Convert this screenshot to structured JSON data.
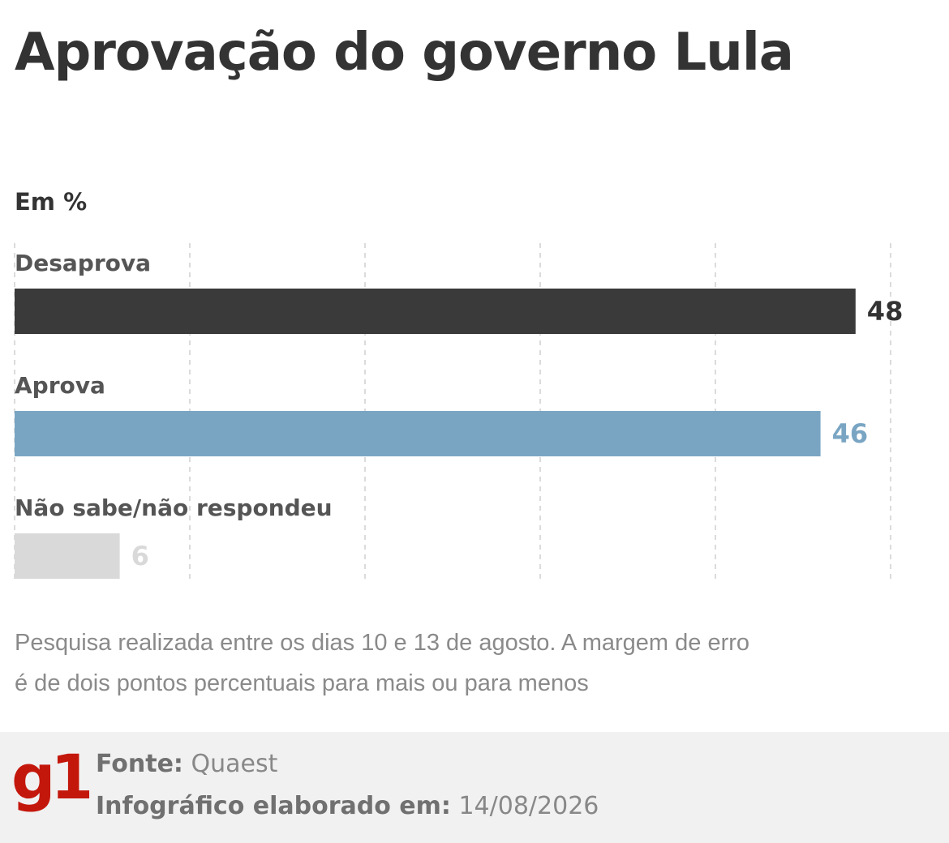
{
  "title": "Aprovação do governo Lula",
  "unit_label": "Em %",
  "chart_data": {
    "type": "bar",
    "orientation": "horizontal",
    "title": "Aprovação do governo Lula",
    "unit": "%",
    "categories": [
      "Desaprova",
      "Aprova",
      "Não sabe/não respondeu"
    ],
    "values": [
      48,
      46,
      6
    ],
    "value_labels": [
      "48",
      "46",
      "6"
    ],
    "xlim": [
      0,
      50
    ],
    "grid": true,
    "colors": [
      "#3a3a3a",
      "#79a5c3",
      "#d9d9d9"
    ],
    "label_colors": [
      "#333333",
      "#79a5c3",
      "#d9d9d9"
    ]
  },
  "note": "Pesquisa realizada entre os dias 10 e 13 de agosto. A margem de erro é de dois pontos percentuais para mais ou para menos",
  "footer": {
    "logo": "g1",
    "logo_color": "#c4170c",
    "source_label": "Fonte:",
    "source_value": "Quaest",
    "date_label": "Infográfico elaborado em:",
    "date_value": "14/08/2026"
  }
}
